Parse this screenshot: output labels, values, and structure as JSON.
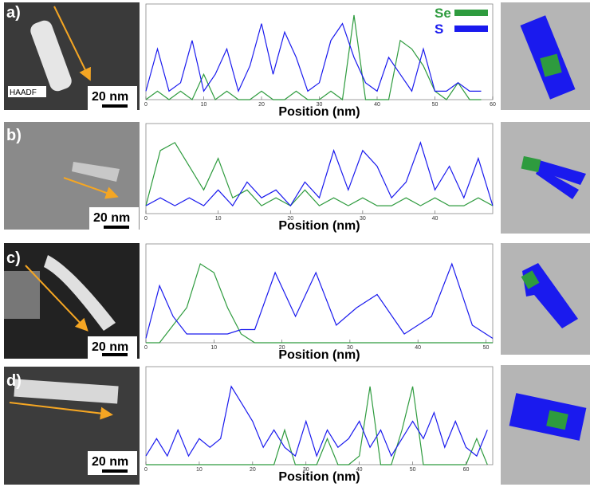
{
  "chart_data": [
    {
      "type": "line",
      "panel_label": "a)",
      "image_label": "HAADF",
      "scale_bar": "20 nm",
      "x_label": "Position (nm)",
      "x": [
        0,
        2,
        4,
        6,
        8,
        10,
        12,
        14,
        16,
        18,
        20,
        22,
        24,
        26,
        28,
        30,
        32,
        34,
        36,
        38,
        40,
        42,
        44,
        46,
        48,
        50,
        52,
        54,
        56,
        58
      ],
      "xlim": [
        0,
        60
      ],
      "xticks": [
        0,
        10,
        20,
        30,
        40,
        50,
        60
      ],
      "ylim": [
        0,
        10
      ],
      "legend": "upper right",
      "series": [
        {
          "name": "Se",
          "color": "#2e9b3e",
          "values": [
            0,
            1,
            0,
            1,
            0,
            3,
            0,
            1,
            0,
            0,
            1,
            0,
            0,
            1,
            0,
            0,
            1,
            0,
            10,
            0,
            0,
            0,
            7,
            6,
            4,
            1,
            0,
            2,
            0,
            0
          ]
        },
        {
          "name": "S",
          "color": "#1a1aee",
          "values": [
            1,
            6,
            1,
            2,
            7,
            1,
            3,
            6,
            1,
            4,
            9,
            3,
            8,
            5,
            1,
            2,
            7,
            9,
            5,
            2,
            1,
            5,
            3,
            1,
            6,
            1,
            1,
            2,
            1,
            1
          ]
        }
      ]
    },
    {
      "type": "line",
      "panel_label": "b)",
      "scale_bar": "20 nm",
      "x_label": "Position (nm)",
      "x": [
        0,
        2,
        4,
        6,
        8,
        10,
        12,
        14,
        16,
        18,
        20,
        22,
        24,
        26,
        28,
        30,
        32,
        34,
        36,
        38,
        40,
        42,
        44,
        46,
        48
      ],
      "xlim": [
        0,
        48
      ],
      "xticks": [
        0,
        10,
        20,
        30,
        40
      ],
      "ylim": [
        0,
        10
      ],
      "series": [
        {
          "color": "#2e9b3e",
          "values": [
            1,
            8,
            9,
            6,
            3,
            7,
            2,
            3,
            1,
            2,
            1,
            3,
            1,
            2,
            1,
            2,
            1,
            1,
            2,
            1,
            2,
            1,
            1,
            2,
            1
          ]
        },
        {
          "color": "#1a1aee",
          "values": [
            1,
            2,
            1,
            2,
            1,
            3,
            1,
            4,
            2,
            3,
            1,
            4,
            2,
            8,
            3,
            8,
            6,
            2,
            4,
            9,
            3,
            6,
            2,
            7,
            1
          ]
        }
      ]
    },
    {
      "type": "line",
      "panel_label": "c)",
      "scale_bar": "20 nm",
      "x_label": "Position (nm)",
      "x": [
        0,
        2,
        4,
        6,
        8,
        10,
        12,
        14,
        16,
        19,
        22,
        25,
        28,
        31,
        34,
        38,
        42,
        45,
        48,
        51
      ],
      "xlim": [
        0,
        51
      ],
      "xticks": [
        0,
        10,
        20,
        30,
        40,
        50
      ],
      "ylim": [
        0,
        10
      ],
      "series": [
        {
          "color": "#2e9b3e",
          "values": [
            0,
            0,
            2,
            4,
            9,
            8,
            4,
            1,
            0,
            0,
            0,
            0,
            0,
            0,
            0,
            0,
            0,
            0,
            0,
            0
          ]
        },
        {
          "color": "#1a1aee",
          "values": [
            0.5,
            6.5,
            3,
            1,
            1,
            1,
            1,
            1.5,
            1.5,
            8,
            3,
            8,
            2,
            4,
            5.5,
            1,
            3,
            9,
            2,
            0.5
          ]
        }
      ]
    },
    {
      "type": "line",
      "panel_label": "d)",
      "scale_bar": "20 nm",
      "x_label": "Position (nm)",
      "x": [
        0,
        2,
        4,
        6,
        8,
        10,
        12,
        14,
        16,
        18,
        20,
        22,
        24,
        26,
        28,
        30,
        32,
        34,
        36,
        38,
        40,
        42,
        44,
        46,
        48,
        50,
        52,
        54,
        56,
        58,
        60,
        62,
        64
      ],
      "xlim": [
        0,
        65
      ],
      "xticks": [
        0,
        10,
        20,
        30,
        40,
        50,
        60
      ],
      "ylim": [
        0,
        10
      ],
      "series": [
        {
          "color": "#2e9b3e",
          "values": [
            0,
            0,
            0,
            0,
            0,
            0,
            0,
            0,
            0,
            0,
            0,
            0,
            0,
            4,
            0,
            0,
            0,
            3,
            0,
            0,
            1,
            9,
            0,
            0,
            4,
            9,
            0,
            0,
            0,
            0,
            0,
            3,
            0
          ]
        },
        {
          "color": "#1a1aee",
          "values": [
            1,
            3,
            1,
            4,
            1,
            3,
            2,
            3,
            9,
            7,
            5,
            2,
            4,
            2,
            1,
            5,
            1,
            4,
            2,
            3,
            5,
            2,
            4,
            1,
            3,
            5,
            3,
            6,
            2,
            5,
            2,
            1,
            4
          ]
        }
      ]
    }
  ]
}
